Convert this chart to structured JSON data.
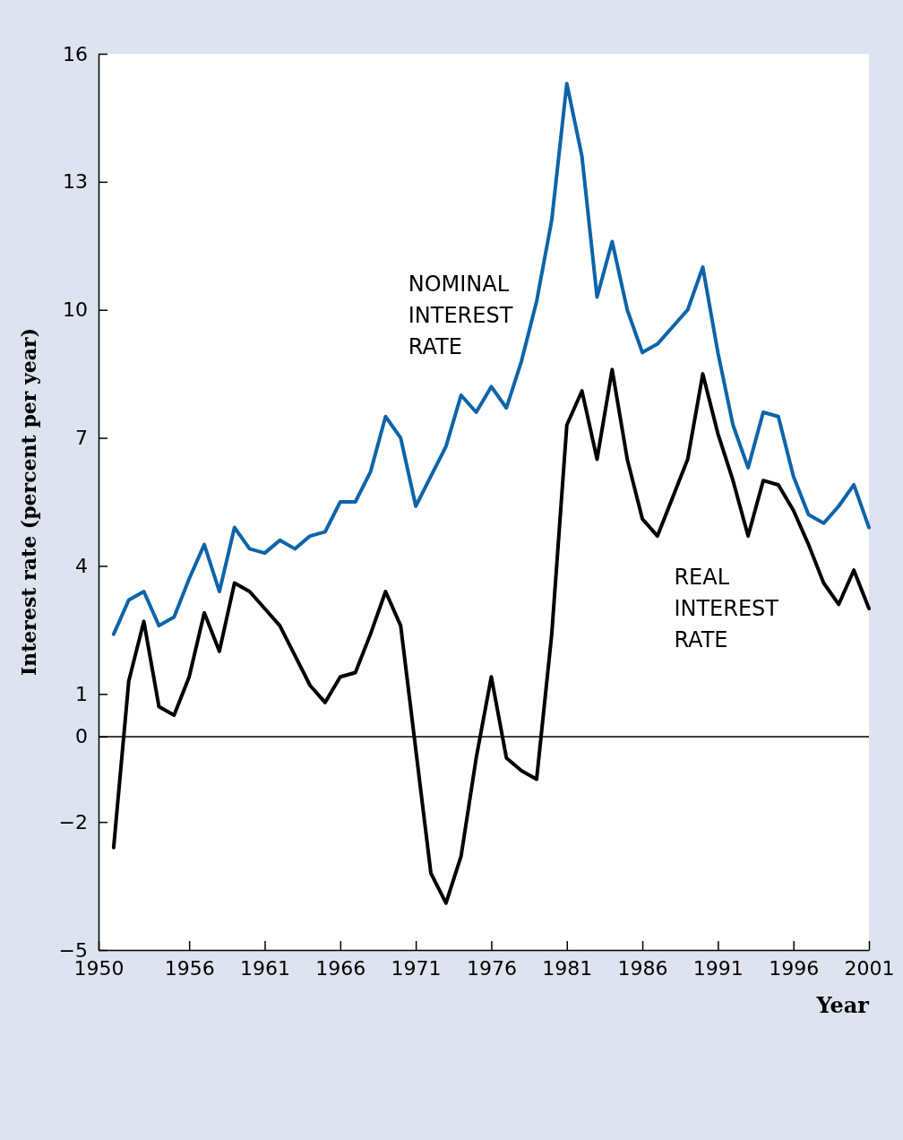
{
  "chart_data": {
    "type": "line",
    "xlabel": "Year",
    "ylabel": "Interest rate (percent per year)",
    "x": [
      1951,
      1952,
      1953,
      1954,
      1955,
      1956,
      1957,
      1958,
      1959,
      1960,
      1961,
      1962,
      1963,
      1964,
      1965,
      1966,
      1967,
      1968,
      1969,
      1970,
      1971,
      1972,
      1973,
      1974,
      1975,
      1976,
      1977,
      1978,
      1979,
      1980,
      1981,
      1982,
      1983,
      1984,
      1985,
      1986,
      1987,
      1988,
      1989,
      1990,
      1991,
      1992,
      1993,
      1994,
      1995,
      1996,
      1997,
      1998,
      1999,
      2000,
      2001
    ],
    "series": [
      {
        "name": "NOMINAL INTEREST RATE",
        "color": "#0d64a8",
        "values": [
          2.4,
          3.2,
          3.4,
          2.6,
          2.8,
          3.7,
          4.5,
          3.4,
          4.9,
          4.4,
          4.3,
          4.6,
          4.4,
          4.7,
          4.8,
          5.5,
          5.5,
          6.2,
          7.5,
          7.0,
          5.4,
          6.1,
          6.8,
          8.0,
          7.6,
          8.2,
          7.7,
          8.8,
          10.2,
          12.1,
          15.3,
          13.6,
          10.3,
          11.6,
          10.0,
          9.0,
          9.2,
          9.6,
          10.0,
          11.0,
          9.0,
          7.3,
          6.3,
          7.6,
          7.5,
          6.1,
          5.2,
          5.0,
          5.4,
          5.9,
          4.9
        ]
      },
      {
        "name": "REAL INTEREST RATE",
        "color": "#000000",
        "values": [
          -2.6,
          1.3,
          2.7,
          0.7,
          0.5,
          1.4,
          2.9,
          2.0,
          3.6,
          3.4,
          3.0,
          2.6,
          1.9,
          1.2,
          0.8,
          1.4,
          1.5,
          2.4,
          3.4,
          2.6,
          -0.3,
          -3.2,
          -3.9,
          -2.8,
          -0.5,
          1.4,
          -0.5,
          -0.8,
          -1.0,
          2.4,
          7.3,
          8.1,
          6.5,
          8.6,
          6.5,
          5.1,
          4.7,
          5.6,
          6.5,
          8.5,
          7.1,
          6.0,
          4.7,
          6.0,
          5.9,
          5.3,
          4.5,
          3.6,
          3.1,
          3.9,
          3.0
        ]
      }
    ],
    "xlim": [
      1950,
      2001
    ],
    "xticks": [
      1950,
      1956,
      1961,
      1966,
      1971,
      1976,
      1981,
      1986,
      1991,
      1996,
      2001
    ],
    "ylim": [
      -5,
      16
    ],
    "yticks": [
      16,
      13,
      10,
      7,
      4,
      1,
      0,
      {
        "value": -2,
        "label": "−2"
      },
      {
        "value": -5,
        "label": "−5"
      }
    ],
    "ref_lines": [
      {
        "axis": "y",
        "value": 0,
        "color": "#000000"
      }
    ],
    "grid": false,
    "legend": false,
    "marker": "none",
    "line_style": "solid"
  }
}
